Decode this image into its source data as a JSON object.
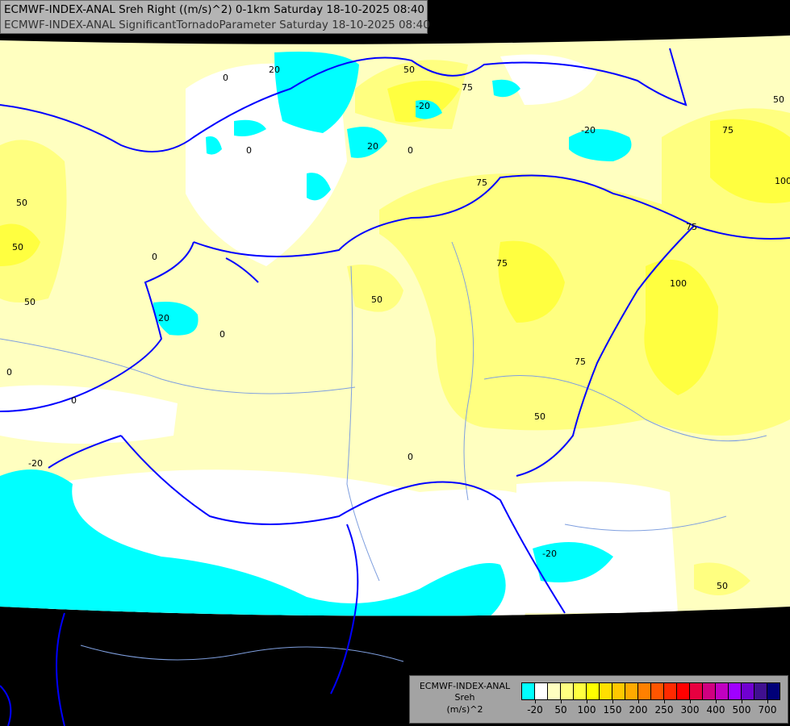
{
  "header": {
    "line1": "ECMWF-INDEX-ANAL Sreh Right ((m/s)^2) 0-1km Saturday 18-10-2025 08:40",
    "line2": "ECMWF-INDEX-ANAL SignificantTornadoParameter Saturday 18-10-2025 08:40"
  },
  "legend": {
    "model": "ECMWF-INDEX-ANAL",
    "variable": "Sreh",
    "unit": "(m/s)^2",
    "colors": [
      "#00ffff",
      "#ffffff",
      "#ffffc0",
      "#ffff80",
      "#ffff40",
      "#ffff00",
      "#ffe000",
      "#ffc800",
      "#ffaa00",
      "#ff8000",
      "#ff5500",
      "#ff2a00",
      "#ff0000",
      "#e80040",
      "#d00080",
      "#c000c0",
      "#a000ff",
      "#7000d0",
      "#401090",
      "#000078"
    ],
    "tick_labels": [
      "-20",
      "50",
      "100",
      "150",
      "200",
      "250",
      "300",
      "400",
      "500",
      "700"
    ]
  },
  "map": {
    "colors": {
      "background": "#000000",
      "border": "#0000ff",
      "river": "#7f9fdf",
      "low": "#00ffff",
      "zero": "#ffffff",
      "pale": "#ffffc0",
      "light": "#ffff80",
      "mid": "#ffff40"
    },
    "contour_labels": [
      "0",
      "20",
      "50",
      "75",
      "-20",
      "0",
      "20",
      "50",
      "0",
      "-20",
      "75",
      "50",
      "100",
      "75",
      "0",
      "20",
      "0",
      "50",
      "75",
      "50",
      "0",
      "0",
      "50",
      "75",
      "100",
      "75",
      "50",
      "0",
      "-20",
      "-20",
      "50"
    ]
  }
}
